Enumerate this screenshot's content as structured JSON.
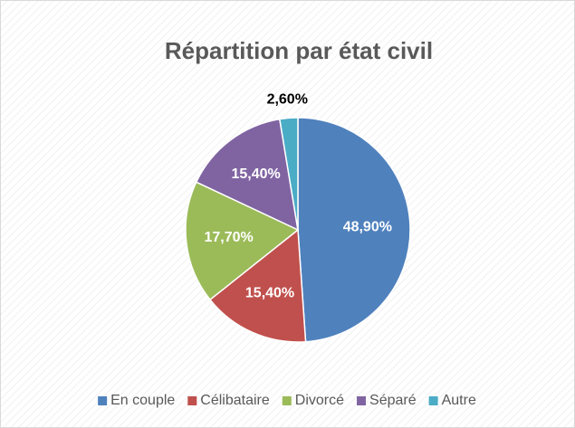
{
  "chart_data": {
    "type": "pie",
    "title": "Répartition par état civil",
    "categories": [
      "En couple",
      "Célibataire",
      "Divorcé",
      "Séparé",
      "Autre"
    ],
    "values": [
      48.9,
      15.4,
      17.7,
      15.4,
      2.6
    ],
    "value_labels": [
      "48,90%",
      "15,40%",
      "17,70%",
      "15,40%",
      "2,60%"
    ],
    "colors": [
      "#4f81bd",
      "#c0504d",
      "#9bbb59",
      "#8064a2",
      "#4bacc6"
    ],
    "legend": "bottom"
  }
}
